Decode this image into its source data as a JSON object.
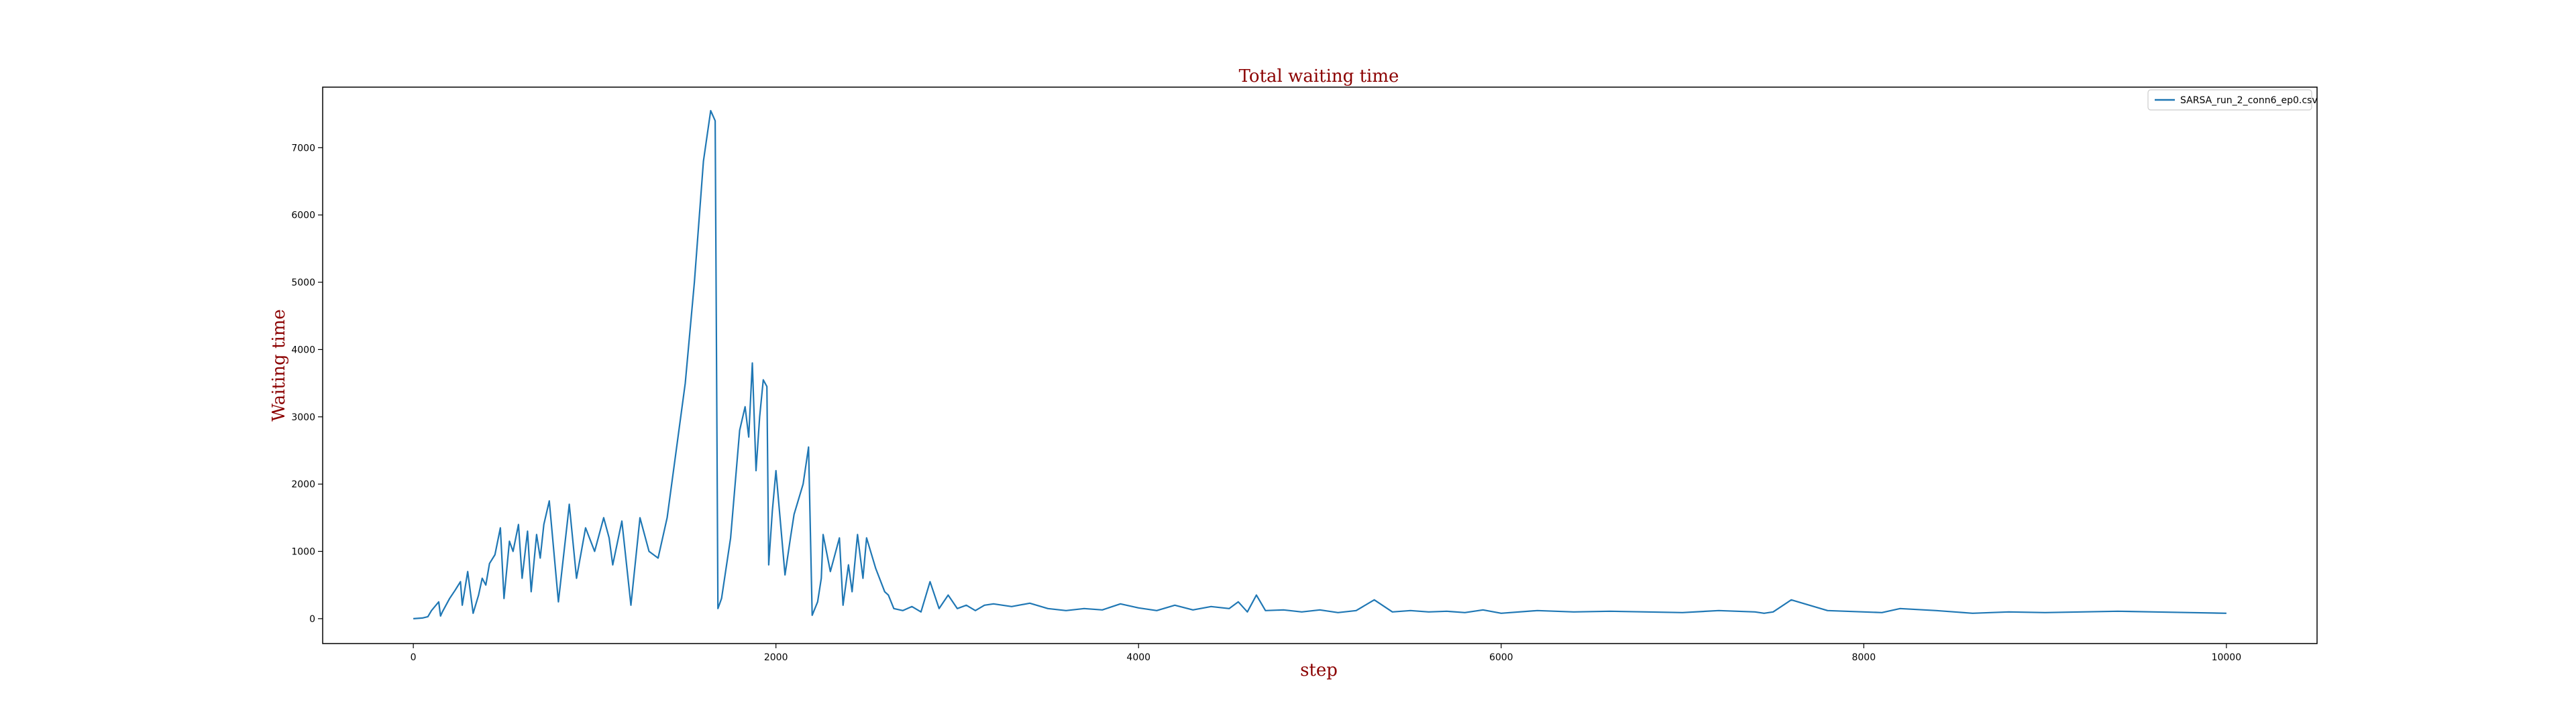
{
  "chart_data": {
    "type": "line",
    "title": "Total waiting time",
    "xlabel": "step",
    "ylabel": "Waiting time",
    "xlim": [
      -500,
      10500
    ],
    "ylim": [
      -370,
      7900
    ],
    "xticks": [
      0,
      2000,
      4000,
      6000,
      8000,
      10000
    ],
    "yticks": [
      0,
      1000,
      2000,
      3000,
      4000,
      5000,
      6000,
      7000
    ],
    "grid": false,
    "legend_position": "top-right",
    "colors": {
      "series": "#1f77b4",
      "title": "#8b0000",
      "axes": "#000000"
    },
    "series": [
      {
        "name": "SARSA_run_2_conn6_ep0.csv",
        "x": [
          0,
          50,
          80,
          100,
          140,
          150,
          160,
          200,
          230,
          260,
          270,
          300,
          330,
          360,
          380,
          400,
          420,
          450,
          480,
          500,
          530,
          550,
          580,
          600,
          630,
          650,
          680,
          700,
          720,
          750,
          800,
          850,
          860,
          900,
          950,
          1000,
          1050,
          1080,
          1100,
          1150,
          1200,
          1250,
          1300,
          1350,
          1400,
          1450,
          1500,
          1550,
          1600,
          1640,
          1665,
          1680,
          1700,
          1750,
          1800,
          1830,
          1850,
          1870,
          1890,
          1910,
          1930,
          1950,
          1960,
          1980,
          2000,
          2050,
          2080,
          2100,
          2150,
          2180,
          2200,
          2230,
          2250,
          2260,
          2300,
          2350,
          2370,
          2400,
          2420,
          2450,
          2480,
          2500,
          2550,
          2600,
          2620,
          2650,
          2700,
          2750,
          2800,
          2850,
          2900,
          2950,
          3000,
          3050,
          3100,
          3150,
          3200,
          3300,
          3400,
          3500,
          3600,
          3700,
          3800,
          3900,
          4000,
          4100,
          4200,
          4300,
          4400,
          4500,
          4550,
          4600,
          4650,
          4700,
          4800,
          4900,
          5000,
          5100,
          5200,
          5300,
          5400,
          5500,
          5600,
          5700,
          5800,
          5900,
          6000,
          6200,
          6400,
          6600,
          6800,
          7000,
          7200,
          7400,
          7450,
          7500,
          7600,
          7800,
          8000,
          8100,
          8200,
          8400,
          8600,
          8800,
          9000,
          9200,
          9400,
          9600,
          9800,
          10000
        ],
        "values": [
          0,
          10,
          30,
          120,
          250,
          40,
          100,
          300,
          420,
          550,
          200,
          700,
          80,
          350,
          600,
          500,
          820,
          950,
          1350,
          300,
          1150,
          1000,
          1400,
          600,
          1300,
          400,
          1250,
          900,
          1400,
          1750,
          250,
          1450,
          1700,
          600,
          1350,
          1000,
          1500,
          1200,
          800,
          1450,
          200,
          1500,
          1000,
          900,
          1500,
          2500,
          3500,
          5000,
          6800,
          7550,
          7400,
          150,
          300,
          1200,
          2800,
          3150,
          2700,
          3800,
          2200,
          3000,
          3550,
          3450,
          800,
          1600,
          2200,
          650,
          1200,
          1550,
          2000,
          2550,
          50,
          250,
          600,
          1250,
          700,
          1200,
          200,
          800,
          400,
          1250,
          600,
          1200,
          750,
          400,
          350,
          150,
          120,
          180,
          100,
          550,
          150,
          350,
          150,
          200,
          120,
          200,
          220,
          180,
          230,
          150,
          120,
          150,
          130,
          220,
          160,
          120,
          200,
          130,
          180,
          150,
          250,
          100,
          350,
          120,
          130,
          100,
          130,
          90,
          120,
          280,
          100,
          120,
          100,
          110,
          90,
          130,
          80,
          120,
          100,
          110,
          100,
          90,
          120,
          100,
          80,
          100,
          280,
          120,
          100,
          90,
          150,
          120,
          80,
          100,
          90,
          100,
          110,
          100,
          90,
          80
        ]
      }
    ]
  }
}
